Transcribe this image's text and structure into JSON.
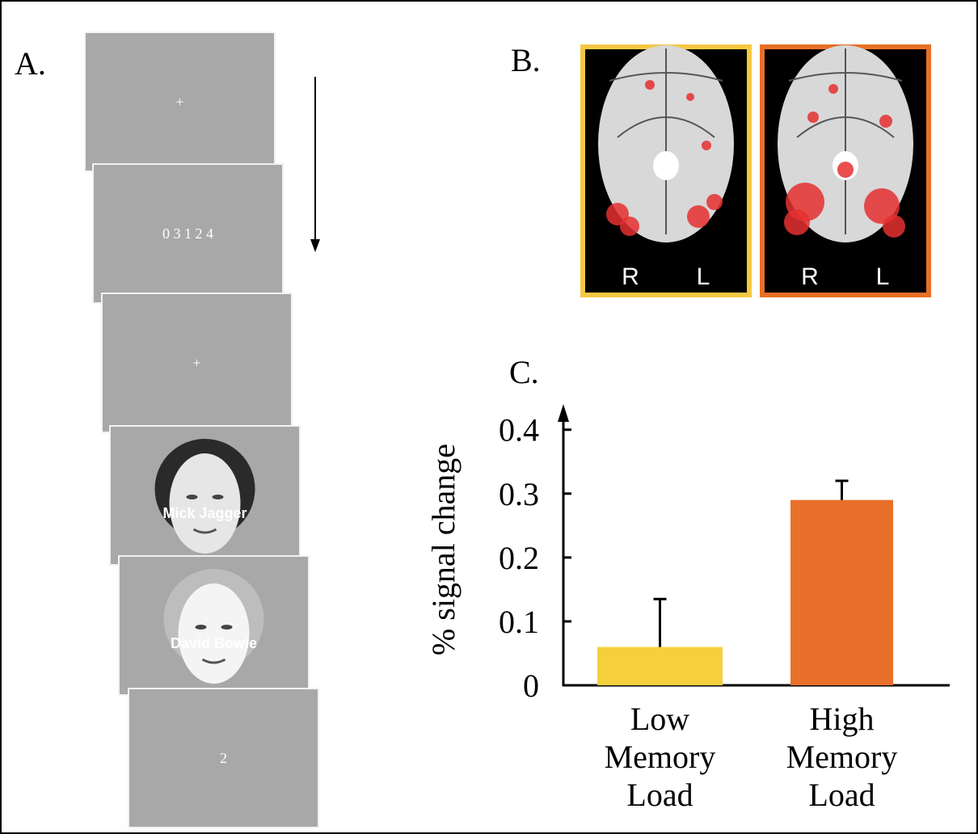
{
  "panels": {
    "a": {
      "label": "A.",
      "slides": [
        "+",
        "0 3 1 2 4",
        "+",
        "Mick Jagger",
        "David Bowie",
        "2"
      ]
    },
    "b": {
      "label": "B.",
      "images": [
        {
          "left": "R",
          "right": "L"
        },
        {
          "left": "R",
          "right": "L"
        }
      ]
    },
    "c": {
      "label": "C."
    }
  },
  "chart_data": {
    "type": "bar",
    "ylabel": "% signal change",
    "categories": [
      "Low Memory Load",
      "High Memory Load"
    ],
    "values": [
      0.06,
      0.29
    ],
    "errors": [
      0.075,
      0.03
    ],
    "colors": [
      "#f5d03b",
      "#e8702a"
    ],
    "ylim": [
      0,
      0.43
    ],
    "yticks": [
      0,
      0.1,
      0.2,
      0.3,
      0.4
    ]
  }
}
